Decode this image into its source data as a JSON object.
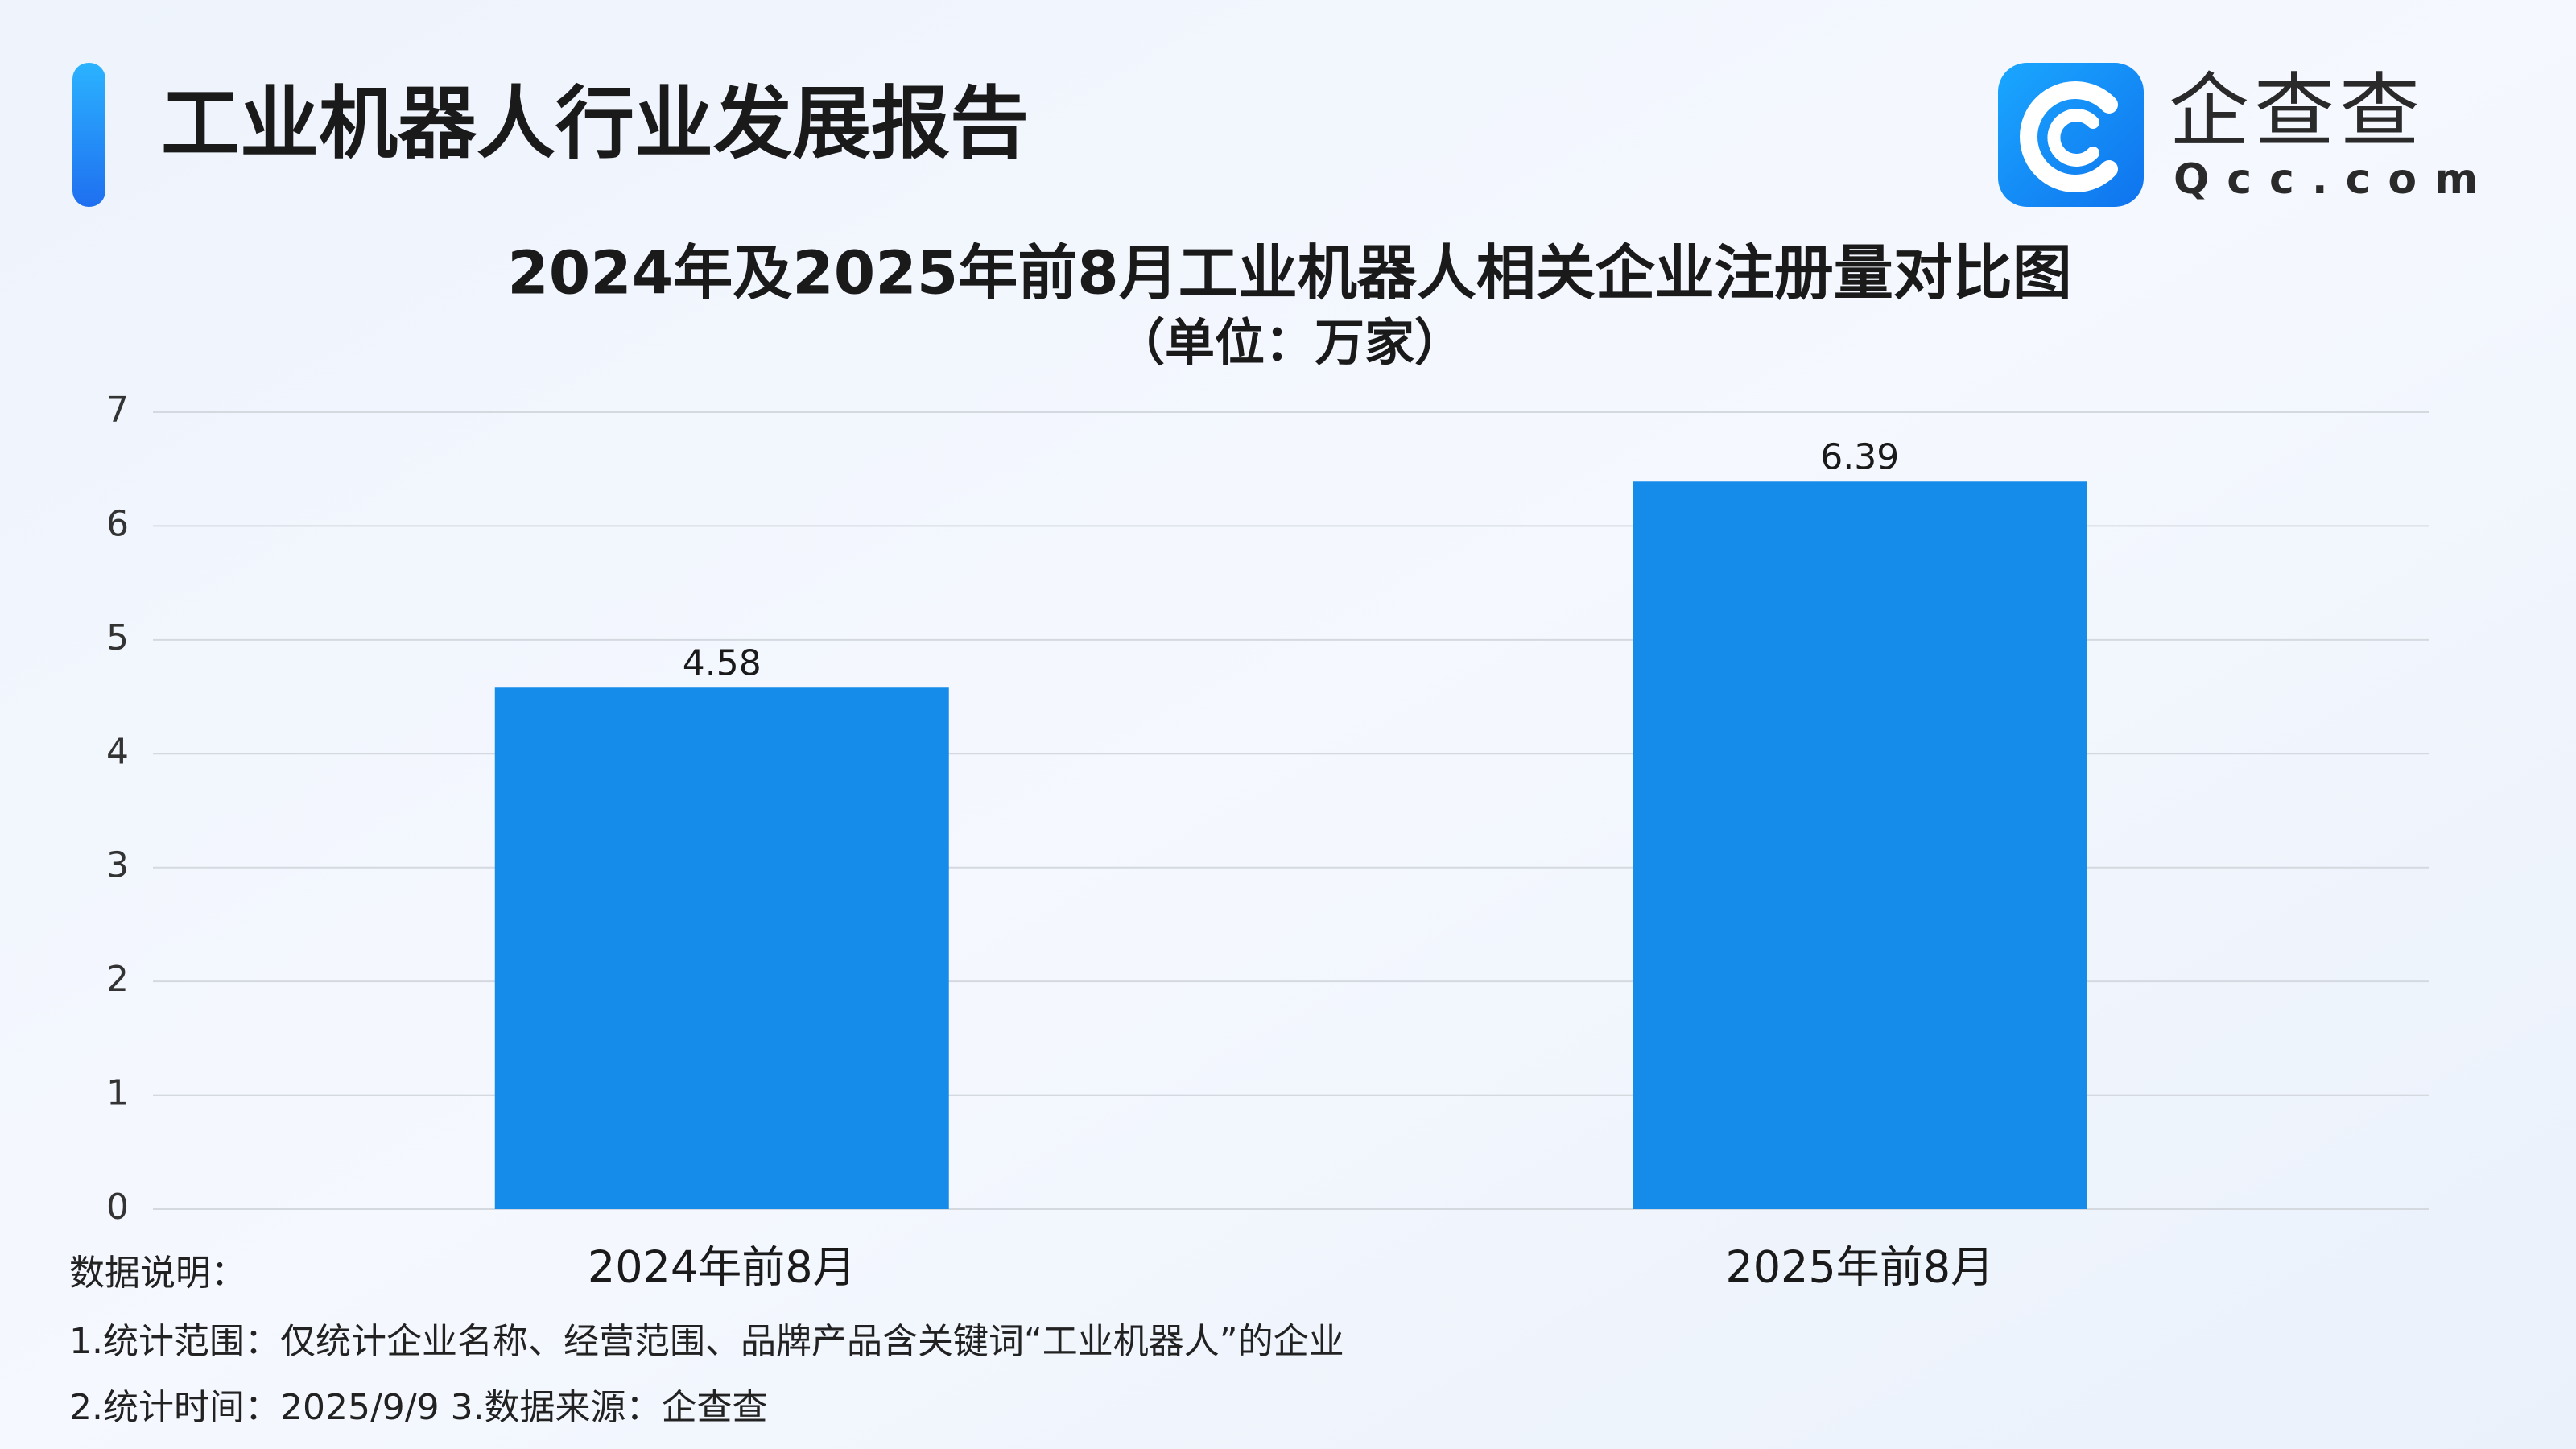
{
  "header": {
    "title": "工业机器人行业发展报告"
  },
  "logo": {
    "name": "企查查",
    "domain": "Qcc.com"
  },
  "chart_data": {
    "type": "bar",
    "title": "2024年及2025年前8月工业机器人相关企业注册量对比图",
    "subtitle": "（单位：万家）",
    "categories": [
      "2024年前8月",
      "2025年前8月"
    ],
    "values": [
      4.58,
      6.39
    ],
    "color": "#158bea",
    "ylim": [
      0,
      7
    ],
    "yticks": [
      0,
      1,
      2,
      3,
      4,
      5,
      6,
      7
    ],
    "grid": true
  },
  "notes": [
    "数据说明：",
    "1.统计范围：仅统计企业名称、经营范围、品牌产品含关键词“工业机器人”的企业",
    "2.统计时间：2025/9/9  3.数据来源：企查查"
  ]
}
